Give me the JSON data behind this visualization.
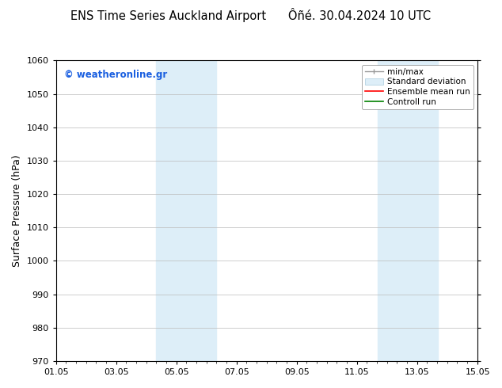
{
  "title_left": "ENS Time Series Auckland Airport",
  "title_right": "Ôñé. 30.04.2024 10 UTC",
  "ylabel": "Surface Pressure (hPa)",
  "xlabel_ticks": [
    "01.05",
    "03.05",
    "05.05",
    "07.05",
    "09.05",
    "11.05",
    "13.05",
    "15.05"
  ],
  "xtick_positions": [
    0,
    2,
    4,
    6,
    8,
    10,
    12,
    14
  ],
  "xlim": [
    0,
    14
  ],
  "ylim": [
    970,
    1060
  ],
  "yticks": [
    970,
    980,
    990,
    1000,
    1010,
    1020,
    1030,
    1040,
    1050,
    1060
  ],
  "shaded_bands": [
    {
      "xstart": 3.33,
      "xend": 4.0,
      "color": "#ddeef8"
    },
    {
      "xstart": 4.0,
      "xend": 5.33,
      "color": "#ddeef8"
    },
    {
      "xstart": 10.67,
      "xend": 11.33,
      "color": "#ddeef8"
    },
    {
      "xstart": 11.33,
      "xend": 12.67,
      "color": "#ddeef8"
    }
  ],
  "watermark_text": "© weatheronline.gr",
  "watermark_color": "#1a5fe0",
  "background_color": "#ffffff",
  "grid_color": "#bbbbbb",
  "tick_color": "#000000",
  "title_fontsize": 10.5,
  "label_fontsize": 9,
  "tick_fontsize": 8,
  "legend_fontsize": 7.5
}
